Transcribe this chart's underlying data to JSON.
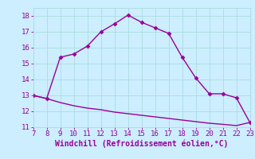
{
  "xlabel": "Windchill (Refroidissement éolien,°C)",
  "x_data": [
    7,
    8,
    9,
    10,
    11,
    12,
    13,
    14,
    15,
    16,
    17,
    18,
    19,
    20,
    21,
    22,
    23
  ],
  "y_data": [
    13.0,
    12.8,
    15.4,
    15.6,
    16.1,
    17.0,
    17.5,
    18.05,
    17.6,
    17.25,
    16.9,
    15.4,
    14.1,
    13.1,
    13.1,
    12.85,
    11.3
  ],
  "y_data2": [
    13.0,
    12.8,
    12.55,
    12.35,
    12.2,
    12.1,
    11.95,
    11.85,
    11.75,
    11.65,
    11.55,
    11.45,
    11.35,
    11.25,
    11.18,
    11.1,
    11.3
  ],
  "line_color": "#990099",
  "bg_color": "#cceeff",
  "grid_color": "#aadddd",
  "tick_color": "#990099",
  "label_color": "#990099",
  "xlim": [
    7,
    23
  ],
  "ylim": [
    11,
    18.5
  ],
  "yticks": [
    11,
    12,
    13,
    14,
    15,
    16,
    17,
    18
  ],
  "xticks": [
    7,
    8,
    9,
    10,
    11,
    12,
    13,
    14,
    15,
    16,
    17,
    18,
    19,
    20,
    21,
    22,
    23
  ],
  "marker": "D",
  "marker_size": 2.5,
  "line_width": 1.0,
  "xlabel_fontsize": 7.0,
  "tick_fontsize": 6.5
}
